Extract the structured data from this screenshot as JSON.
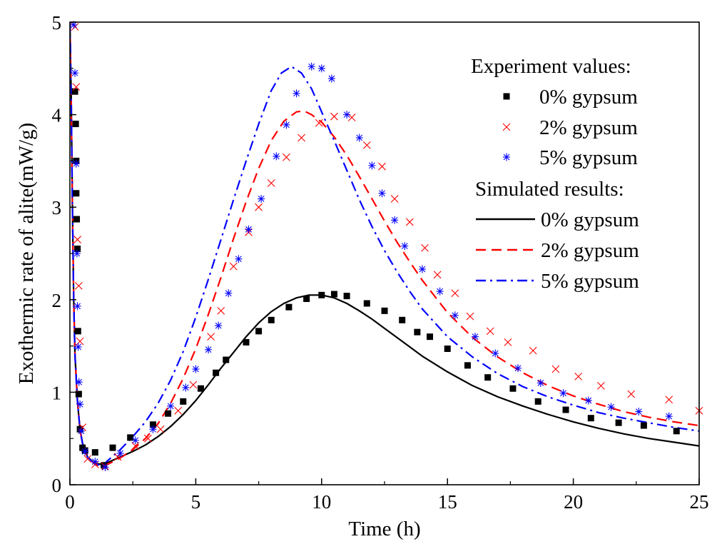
{
  "chart_data": {
    "type": "line",
    "title": "",
    "xlabel": "Time (h)",
    "ylabel": "Exothermic rate of alite(mW/g)",
    "xlim": [
      0,
      25
    ],
    "ylim": [
      0,
      5
    ],
    "xticks": [
      0,
      5,
      10,
      15,
      20,
      25
    ],
    "yticks": [
      0,
      1,
      2,
      3,
      4,
      5
    ],
    "grid": false,
    "legend_position": "top-right",
    "legend": {
      "experiment_heading": "Experiment values:",
      "simulated_heading": "Simulated results:"
    },
    "experiment": [
      {
        "name": "0% gypsum",
        "marker": "square",
        "color": "#000000",
        "x": [
          0.2,
          0.23,
          0.25,
          0.25,
          0.27,
          0.3,
          0.32,
          0.35,
          0.4,
          0.5,
          0.6,
          1.0,
          1.35,
          1.7,
          2.4,
          3.3,
          3.9,
          4.5,
          5.2,
          5.8,
          6.2,
          7.0,
          7.5,
          8.0,
          8.7,
          9.4,
          10.0,
          10.5,
          11.0,
          11.8,
          12.5,
          13.2,
          13.8,
          14.3,
          15.0,
          15.8,
          16.6,
          17.6,
          18.6,
          19.7,
          20.7,
          21.8,
          22.8,
          24.1
        ],
        "y": [
          4.25,
          3.9,
          3.5,
          3.15,
          2.87,
          2.55,
          1.66,
          0.98,
          0.6,
          0.4,
          0.37,
          0.35,
          0.21,
          0.4,
          0.51,
          0.65,
          0.77,
          0.9,
          1.04,
          1.21,
          1.35,
          1.54,
          1.66,
          1.78,
          1.92,
          2.01,
          2.05,
          2.06,
          2.04,
          1.96,
          1.88,
          1.78,
          1.65,
          1.6,
          1.47,
          1.29,
          1.16,
          1.04,
          0.9,
          0.81,
          0.72,
          0.67,
          0.64,
          0.58
        ]
      },
      {
        "name": "2% gypsum",
        "marker": "x",
        "color": "#ff0000",
        "x": [
          0.2,
          0.25,
          0.3,
          0.35,
          0.4,
          0.5,
          0.7,
          1.0,
          1.4,
          1.9,
          2.6,
          3.1,
          3.6,
          4.3,
          4.9,
          5.6,
          6.0,
          6.5,
          7.1,
          7.5,
          8.0,
          8.6,
          9.2,
          9.9,
          10.5,
          11.2,
          11.8,
          12.4,
          12.9,
          13.5,
          14.1,
          14.6,
          15.3,
          15.9,
          16.7,
          17.4,
          18.4,
          19.3,
          20.2,
          21.1,
          22.3,
          23.8,
          25.0
        ],
        "y": [
          4.95,
          4.3,
          2.65,
          2.15,
          1.55,
          0.62,
          0.28,
          0.22,
          0.2,
          0.3,
          0.42,
          0.5,
          0.6,
          0.8,
          1.08,
          1.6,
          1.88,
          2.36,
          2.73,
          3.0,
          3.26,
          3.54,
          3.75,
          3.91,
          3.98,
          3.97,
          3.67,
          3.44,
          3.09,
          2.84,
          2.56,
          2.27,
          2.07,
          1.82,
          1.66,
          1.54,
          1.45,
          1.25,
          1.17,
          1.07,
          0.98,
          0.92,
          0.8
        ]
      },
      {
        "name": "5% gypsum",
        "marker": "asterisk",
        "color": "#0000ff",
        "x": [
          0.15,
          0.2,
          0.25,
          0.28,
          0.3,
          0.33,
          0.36,
          0.4,
          0.45,
          0.6,
          1.0,
          1.4,
          2.0,
          2.6,
          3.3,
          4.0,
          4.6,
          5.0,
          5.5,
          5.9,
          6.3,
          6.7,
          7.1,
          7.6,
          8.2,
          8.6,
          9.0,
          9.6,
          10.0,
          10.4,
          11.0,
          11.5,
          12.0,
          12.4,
          12.9,
          13.3,
          14.0,
          14.7,
          15.3,
          16.1,
          16.9,
          17.8,
          18.7,
          19.6,
          20.6,
          21.5,
          22.6,
          23.8
        ],
        "y": [
          4.97,
          4.45,
          3.47,
          2.5,
          1.93,
          1.49,
          1.11,
          0.87,
          0.58,
          0.36,
          0.25,
          0.19,
          0.34,
          0.48,
          0.6,
          0.85,
          1.05,
          1.25,
          1.46,
          1.72,
          2.07,
          2.44,
          2.76,
          3.09,
          3.55,
          3.89,
          4.23,
          4.52,
          4.5,
          4.39,
          4.0,
          3.75,
          3.45,
          3.15,
          2.86,
          2.58,
          2.33,
          2.09,
          1.83,
          1.6,
          1.42,
          1.26,
          1.1,
          0.99,
          0.91,
          0.84,
          0.79,
          0.74
        ]
      }
    ],
    "simulated": [
      {
        "name": "0% gypsum",
        "line_style": "solid",
        "color": "#000000",
        "x": [
          0.0,
          0.05,
          0.1,
          0.15,
          0.2,
          0.3,
          0.4,
          0.5,
          0.7,
          1.0,
          1.3,
          1.5,
          2.0,
          2.5,
          3.0,
          3.5,
          4.0,
          4.5,
          5.0,
          5.5,
          6.0,
          6.5,
          7.0,
          7.5,
          8.0,
          8.5,
          9.0,
          9.5,
          10.0,
          10.5,
          11.0,
          11.5,
          12.0,
          12.5,
          13.0,
          13.5,
          14.0,
          15.0,
          16.0,
          17.0,
          18.0,
          19.0,
          20.0,
          21.0,
          22.0,
          23.0,
          24.0,
          25.0
        ],
        "y": [
          5.0,
          4.2,
          3.0,
          2.0,
          1.4,
          0.9,
          0.6,
          0.45,
          0.3,
          0.23,
          0.22,
          0.24,
          0.3,
          0.36,
          0.43,
          0.52,
          0.63,
          0.76,
          0.91,
          1.08,
          1.26,
          1.43,
          1.6,
          1.75,
          1.87,
          1.96,
          2.02,
          2.05,
          2.05,
          2.02,
          1.96,
          1.88,
          1.79,
          1.69,
          1.59,
          1.49,
          1.39,
          1.22,
          1.07,
          0.95,
          0.85,
          0.76,
          0.68,
          0.61,
          0.55,
          0.5,
          0.46,
          0.42
        ]
      },
      {
        "name": "2% gypsum",
        "line_style": "dashed",
        "color": "#ff0000",
        "x": [
          0.0,
          0.05,
          0.1,
          0.15,
          0.2,
          0.3,
          0.4,
          0.5,
          0.7,
          1.0,
          1.2,
          1.5,
          2.0,
          2.5,
          3.0,
          3.5,
          4.0,
          4.5,
          5.0,
          5.5,
          6.0,
          6.5,
          7.0,
          7.5,
          8.0,
          8.5,
          9.0,
          9.3,
          9.6,
          10.0,
          10.5,
          11.0,
          11.5,
          12.0,
          12.5,
          13.0,
          13.5,
          14.0,
          15.0,
          16.0,
          17.0,
          18.0,
          19.0,
          20.0,
          21.0,
          22.0,
          23.0,
          24.0,
          25.0
        ],
        "y": [
          5.0,
          4.2,
          3.0,
          2.0,
          1.4,
          0.9,
          0.6,
          0.45,
          0.3,
          0.22,
          0.2,
          0.22,
          0.29,
          0.38,
          0.5,
          0.66,
          0.88,
          1.15,
          1.47,
          1.84,
          2.24,
          2.66,
          3.06,
          3.42,
          3.72,
          3.93,
          4.03,
          4.04,
          4.0,
          3.92,
          3.76,
          3.56,
          3.33,
          3.09,
          2.85,
          2.62,
          2.41,
          2.21,
          1.86,
          1.59,
          1.38,
          1.21,
          1.07,
          0.96,
          0.87,
          0.79,
          0.73,
          0.68,
          0.64
        ]
      },
      {
        "name": "5% gypsum",
        "line_style": "dash-dot",
        "color": "#0000ff",
        "x": [
          0.0,
          0.05,
          0.1,
          0.15,
          0.2,
          0.3,
          0.4,
          0.5,
          0.7,
          1.0,
          1.3,
          1.5,
          2.0,
          2.5,
          3.0,
          3.5,
          4.0,
          4.5,
          5.0,
          5.5,
          6.0,
          6.5,
          7.0,
          7.5,
          8.0,
          8.4,
          8.8,
          9.2,
          9.6,
          10.0,
          10.5,
          11.0,
          11.5,
          12.0,
          12.5,
          13.0,
          13.5,
          14.0,
          15.0,
          16.0,
          17.0,
          18.0,
          19.0,
          20.0,
          21.0,
          22.0,
          23.0,
          24.0,
          25.0
        ],
        "y": [
          5.0,
          4.2,
          3.0,
          2.0,
          1.4,
          0.9,
          0.6,
          0.45,
          0.3,
          0.22,
          0.21,
          0.26,
          0.38,
          0.52,
          0.68,
          0.88,
          1.13,
          1.44,
          1.81,
          2.22,
          2.65,
          3.08,
          3.5,
          3.9,
          4.26,
          4.45,
          4.52,
          4.45,
          4.28,
          4.03,
          3.72,
          3.4,
          3.08,
          2.79,
          2.53,
          2.3,
          2.09,
          1.9,
          1.6,
          1.38,
          1.2,
          1.06,
          0.95,
          0.86,
          0.78,
          0.72,
          0.67,
          0.62,
          0.58
        ]
      }
    ]
  }
}
